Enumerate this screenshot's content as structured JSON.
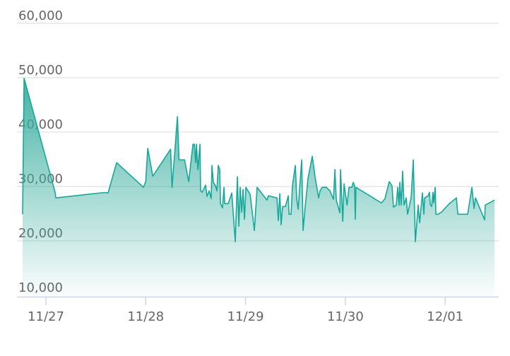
{
  "chart_data": {
    "type": "area",
    "title": "",
    "xlabel": "",
    "ylabel": "",
    "ylim": [
      10000,
      60000
    ],
    "yticks": [
      10000,
      20000,
      30000,
      40000,
      50000,
      60000
    ],
    "ytick_labels": [
      "10,000",
      "20,000",
      "30,000",
      "40,000",
      "50,000",
      "60,000"
    ],
    "xticks": [
      "11/27 00:00",
      "11/28 00:00",
      "11/29 00:00",
      "11/30 00:00",
      "12/01 00:00"
    ],
    "xtick_labels": [
      "11/27",
      "11/28",
      "11/29",
      "11/30",
      "12/01"
    ],
    "grid": true,
    "legend": "none",
    "colors": {
      "line": "#16a89b",
      "fill_top": "#3aae9f",
      "grid": "#e6e6e6",
      "axis": "#ccd6eb",
      "label": "#666666"
    },
    "series": [
      {
        "x": [
          "11/26 18:24",
          "11/26 18:45",
          "11/27 02:12",
          "11/27 02:23",
          "11/27 14:06",
          "11/27 14:57",
          "11/27 17:00",
          "11/27 23:27",
          "11/28 00:00",
          "11/28 00:30",
          "11/28 01:42",
          "11/28 05:59",
          "11/28 06:20",
          "11/28 07:38",
          "11/28 08:00",
          "11/28 09:20",
          "11/28 10:20",
          "11/28 11:22",
          "11/28 11:42",
          "11/28 12:02",
          "11/28 12:12",
          "11/28 12:32",
          "11/28 13:03",
          "11/28 13:12",
          "11/28 13:33",
          "11/28 14:24",
          "11/28 14:44",
          "11/28 15:15",
          "11/28 15:45",
          "11/28 15:55",
          "11/28 16:16",
          "11/28 16:47",
          "11/28 17:07",
          "11/28 17:27",
          "11/28 17:48",
          "11/28 17:58",
          "11/28 18:28",
          "11/28 18:49",
          "11/28 18:59",
          "11/28 19:50",
          "11/28 20:41",
          "11/28 21:32",
          "11/28 22:03",
          "11/28 22:23",
          "11/28 22:43",
          "11/28 23:04",
          "11/28 23:24",
          "11/28 23:45",
          "11/29 00:05",
          "11/29 01:06",
          "11/29 02:07",
          "11/29 02:47",
          "11/29 05:10",
          "11/29 05:30",
          "11/29 07:33",
          "11/29 07:53",
          "11/29 08:14",
          "11/29 08:34",
          "11/29 08:55",
          "11/29 09:36",
          "11/29 10:17",
          "11/29 10:27",
          "11/29 10:57",
          "11/29 11:18",
          "11/29 11:58",
          "11/29 12:19",
          "11/29 12:39",
          "11/29 13:30",
          "11/29 13:51",
          "11/29 14:21",
          "11/29 15:02",
          "11/29 16:03",
          "11/29 16:44",
          "11/29 17:35",
          "11/29 17:55",
          "11/29 18:26",
          "11/29 19:27",
          "11/29 20:18",
          "11/29 21:09",
          "11/29 21:29",
          "11/29 21:50",
          "11/29 22:41",
          "11/29 22:51",
          "11/29 23:22",
          "11/29 23:42",
          "11/30 00:24",
          "11/30 00:53",
          "11/30 01:34",
          "11/30 01:54",
          "11/30 02:14",
          "11/30 02:24",
          "11/30 02:34",
          "11/30 08:41",
          "11/30 09:32",
          "11/30 10:33",
          "11/30 11:14",
          "11/30 11:34",
          "11/30 12:15",
          "11/30 12:35",
          "11/30 12:56",
          "11/30 13:06",
          "11/30 13:26",
          "11/30 13:47",
          "11/30 14:07",
          "11/30 14:38",
          "11/30 14:58",
          "11/30 15:49",
          "11/30 16:20",
          "11/30 16:50",
          "11/30 17:31",
          "11/30 17:52",
          "11/30 18:32",
          "11/30 18:53",
          "11/30 19:03",
          "11/30 19:54",
          "11/30 20:14",
          "11/30 20:25",
          "11/30 20:45",
          "11/30 21:05",
          "11/30 21:16",
          "11/30 21:36",
          "11/30 21:47",
          "11/30 22:17",
          "11/30 23:08",
          "12/01 01:00",
          "12/01 02:42",
          "12/01 03:02",
          "12/01 05:25",
          "12/01 06:26",
          "12/01 06:57",
          "12/01 07:17",
          "12/01 09:30",
          "12/01 09:39",
          "12/01 11:52"
        ],
        "values": [
          24900,
          49900,
          28930,
          27900,
          28900,
          28800,
          34390,
          29840,
          30900,
          37000,
          31900,
          36860,
          29840,
          42840,
          34900,
          34900,
          30900,
          37770,
          37770,
          34390,
          37770,
          33100,
          37770,
          29190,
          28930,
          30230,
          28150,
          29190,
          27760,
          33870,
          30750,
          30100,
          29190,
          33870,
          33100,
          26850,
          26070,
          29840,
          26850,
          26850,
          28800,
          19830,
          31790,
          22690,
          29840,
          25290,
          29450,
          23990,
          29840,
          28540,
          21910,
          29840,
          27500,
          28280,
          27890,
          23730,
          28670,
          22950,
          26330,
          26330,
          28280,
          24900,
          24900,
          30230,
          33870,
          27630,
          25810,
          34900,
          21910,
          26330,
          31530,
          35560,
          31660,
          27890,
          29190,
          29840,
          29840,
          29190,
          27630,
          33100,
          27500,
          25160,
          33100,
          23600,
          30490,
          26590,
          29840,
          29840,
          30750,
          30100,
          23990,
          29840,
          26980,
          27760,
          30880,
          30100,
          26200,
          26590,
          29840,
          26590,
          30750,
          26590,
          32830,
          26590,
          27890,
          24900,
          27890,
          34900,
          19830,
          26590,
          23340,
          28800,
          24900,
          27890,
          28280,
          28930,
          26720,
          26330,
          28930,
          26980,
          29840,
          24900,
          24900,
          25290,
          26850,
          27890,
          24900,
          24900,
          29840,
          25940,
          27890,
          23860,
          26590,
          27500
        ]
      }
    ]
  }
}
